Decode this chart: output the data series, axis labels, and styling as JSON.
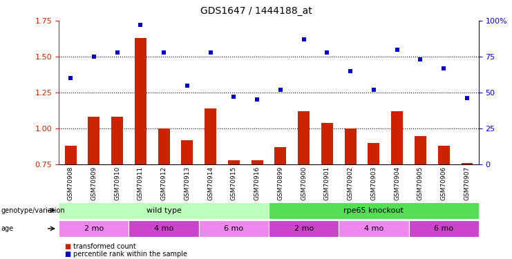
{
  "title": "GDS1647 / 1444188_at",
  "samples": [
    "GSM70908",
    "GSM70909",
    "GSM70910",
    "GSM70911",
    "GSM70912",
    "GSM70913",
    "GSM70914",
    "GSM70915",
    "GSM70916",
    "GSM70899",
    "GSM70900",
    "GSM70901",
    "GSM70902",
    "GSM70903",
    "GSM70904",
    "GSM70905",
    "GSM70906",
    "GSM70907"
  ],
  "bar_values": [
    0.88,
    1.08,
    1.08,
    1.63,
    1.0,
    0.92,
    1.14,
    0.78,
    0.78,
    0.87,
    1.12,
    1.04,
    1.0,
    0.9,
    1.12,
    0.95,
    0.88,
    0.76
  ],
  "dot_values_pct": [
    60,
    75,
    78,
    97,
    78,
    55,
    78,
    47,
    45,
    52,
    87,
    78,
    65,
    52,
    80,
    73,
    67,
    46
  ],
  "bar_color": "#cc2200",
  "dot_color": "#0000cc",
  "ylim_left": [
    0.75,
    1.75
  ],
  "ylim_right": [
    0,
    100
  ],
  "yticks_left": [
    0.75,
    1.0,
    1.25,
    1.5,
    1.75
  ],
  "yticks_right": [
    0,
    25,
    50,
    75,
    100
  ],
  "ytick_labels_right": [
    "0",
    "25",
    "50",
    "75",
    "100%"
  ],
  "hlines": [
    1.0,
    1.25,
    1.5
  ],
  "genotype_groups": [
    {
      "label": "wild type",
      "start": 0,
      "end": 9,
      "color": "#bbffbb"
    },
    {
      "label": "rpe65 knockout",
      "start": 9,
      "end": 18,
      "color": "#55dd55"
    }
  ],
  "age_groups": [
    {
      "label": "2 mo",
      "start": 0,
      "end": 3,
      "color": "#ee88ee"
    },
    {
      "label": "4 mo",
      "start": 3,
      "end": 6,
      "color": "#cc44cc"
    },
    {
      "label": "6 mo",
      "start": 6,
      "end": 9,
      "color": "#ee88ee"
    },
    {
      "label": "2 mo",
      "start": 9,
      "end": 12,
      "color": "#cc44cc"
    },
    {
      "label": "4 mo",
      "start": 12,
      "end": 15,
      "color": "#ee88ee"
    },
    {
      "label": "6 mo",
      "start": 15,
      "end": 18,
      "color": "#cc44cc"
    }
  ],
  "legend_items": [
    {
      "label": "transformed count",
      "color": "#cc2200"
    },
    {
      "label": "percentile rank within the sample",
      "color": "#0000cc"
    }
  ],
  "left_label_color": "#cc2200",
  "right_label_color": "#0000cc",
  "bar_width": 0.5
}
